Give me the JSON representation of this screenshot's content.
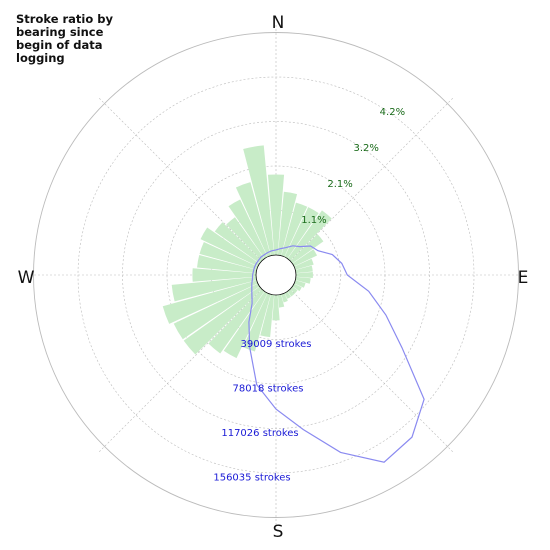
{
  "title": "Stroke ratio by bearing since begin of data logging",
  "colors": {
    "bars": "#c8ecc8",
    "line": "#8a8af0",
    "pct_label": "#1a6b1a",
    "count_label": "#1a1ad6",
    "grid": "#bbbbbb"
  },
  "compass": {
    "n": "N",
    "e": "E",
    "s": "S",
    "w": "W"
  },
  "chart_data": {
    "type": "polar",
    "direction": "clockwise from north",
    "ratio_axis": {
      "unit": "%",
      "ticks": [
        "1.1%",
        "2.1%",
        "3.2%",
        "4.2%"
      ],
      "tick_values": [
        1.05,
        2.1,
        3.15,
        4.2
      ]
    },
    "stroke_axis": {
      "unit": "strokes",
      "ticks": [
        "39009 strokes",
        "78018 strokes",
        "117026 strokes",
        "156035 strokes"
      ],
      "tick_values": [
        39009,
        78018,
        117026,
        156035
      ]
    },
    "bars_ratio_percent": {
      "bearings": [
        0,
        10,
        20,
        30,
        40,
        50,
        60,
        70,
        80,
        90,
        100,
        110,
        120,
        130,
        140,
        150,
        160,
        170,
        180,
        190,
        200,
        210,
        220,
        230,
        240,
        250,
        260,
        270,
        280,
        290,
        300,
        310,
        320,
        330,
        340,
        350
      ],
      "values": [
        1.9,
        1.5,
        1.3,
        1.3,
        1.4,
        0.9,
        0.6,
        0.45,
        0.4,
        0.4,
        0.35,
        0.25,
        0.2,
        0.15,
        0.15,
        0.15,
        0.2,
        0.3,
        0.6,
        1.0,
        1.4,
        1.7,
        1.8,
        2.2,
        2.2,
        2.3,
        2.0,
        1.5,
        1.4,
        1.4,
        1.5,
        1.3,
        1.2,
        1.5,
        1.8,
        2.6
      ]
    },
    "line_stroke_count": {
      "bearings": [
        0,
        10,
        20,
        30,
        40,
        50,
        60,
        70,
        80,
        90,
        100,
        110,
        120,
        130,
        140,
        150,
        160,
        170,
        180,
        190,
        200,
        210,
        220,
        230,
        240,
        250,
        260,
        270,
        280,
        290,
        300,
        310,
        320,
        330,
        340,
        350
      ],
      "values": [
        4500,
        6000,
        8000,
        12000,
        15000,
        22000,
        25000,
        35000,
        41000,
        45000,
        65000,
        85000,
        110000,
        152000,
        168000,
        172000,
        148000,
        120000,
        100000,
        80000,
        50000,
        30000,
        15000,
        10000,
        7000,
        5000,
        3500,
        3000,
        2500,
        2500,
        2500,
        2500,
        3000,
        3000,
        3500,
        4000
      ]
    }
  }
}
